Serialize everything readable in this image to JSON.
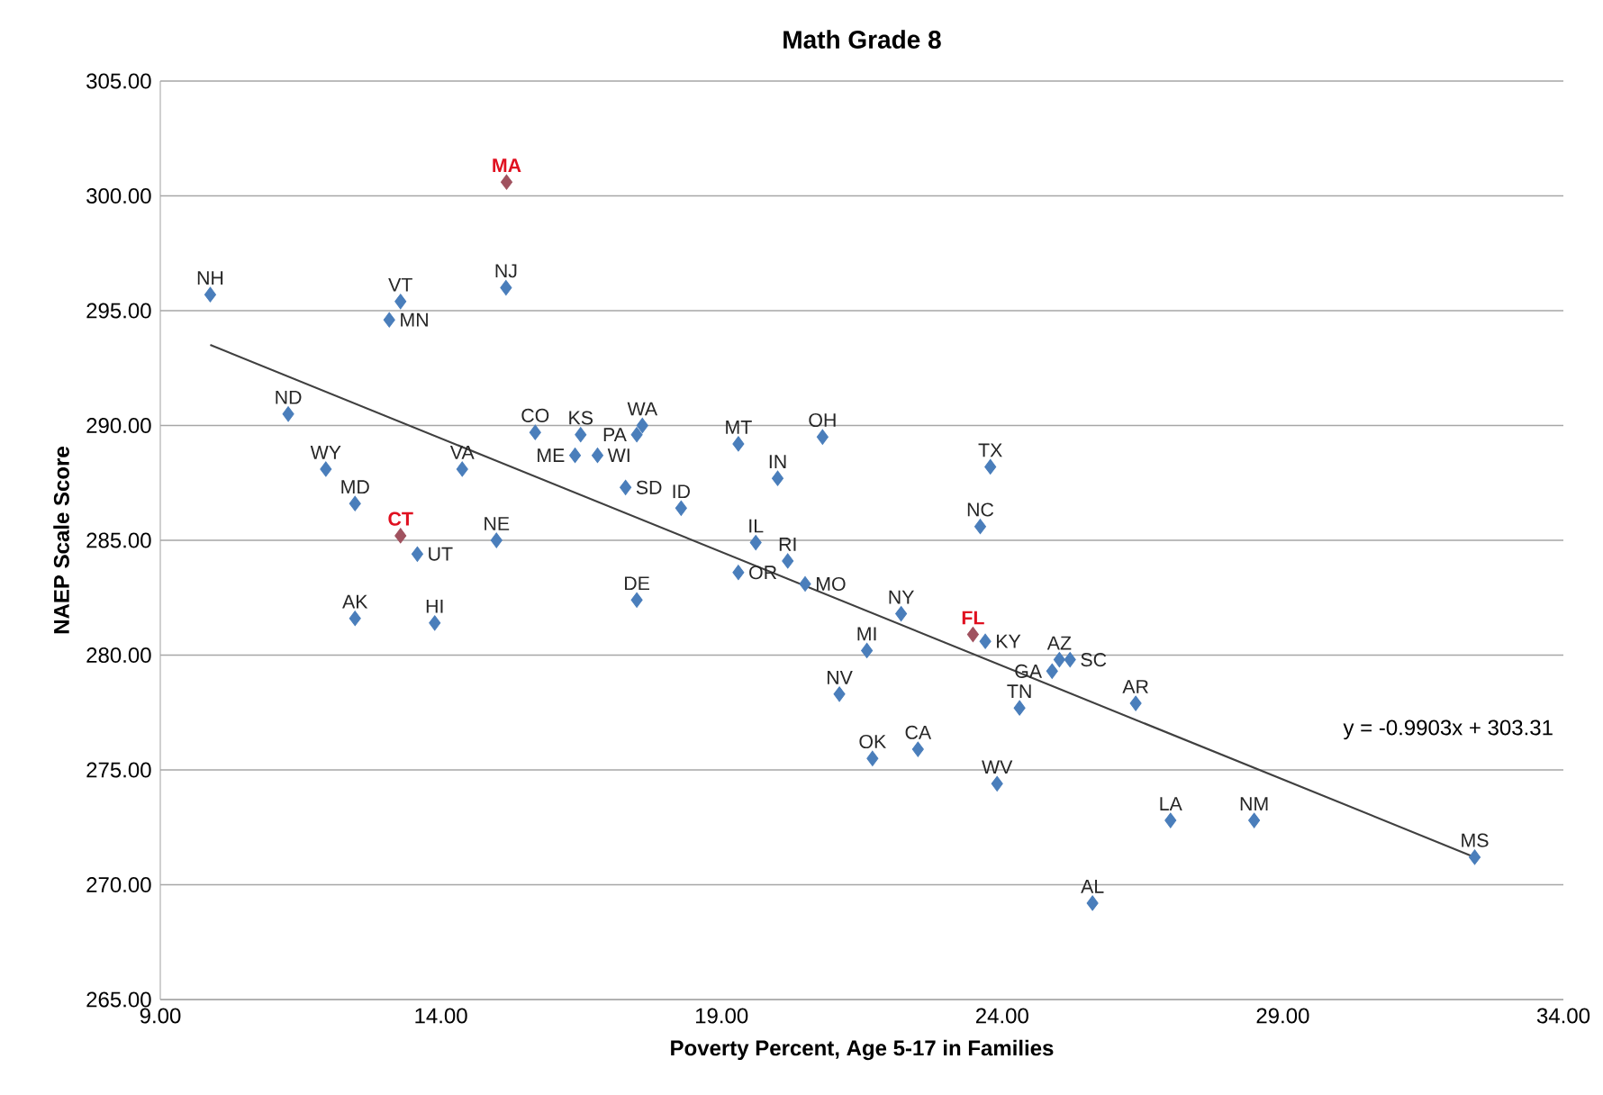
{
  "chart_data": {
    "type": "scatter",
    "title": "Math Grade 8",
    "xlabel": "Poverty Percent, Age 5-17 in Families",
    "ylabel": "NAEP Scale Score",
    "xlim": [
      9,
      34
    ],
    "ylim": [
      265,
      305
    ],
    "xticks": [
      {
        "value": 9,
        "label": "9.00"
      },
      {
        "value": 14,
        "label": "14.00"
      },
      {
        "value": 19,
        "label": "19.00"
      },
      {
        "value": 24,
        "label": "24.00"
      },
      {
        "value": 29,
        "label": "29.00"
      },
      {
        "value": 34,
        "label": "34.00"
      }
    ],
    "yticks": [
      {
        "value": 265,
        "label": "265.00"
      },
      {
        "value": 270,
        "label": "270.00"
      },
      {
        "value": 275,
        "label": "275.00"
      },
      {
        "value": 280,
        "label": "280.00"
      },
      {
        "value": 285,
        "label": "285.00"
      },
      {
        "value": 290,
        "label": "290.00"
      },
      {
        "value": 295,
        "label": "295.00"
      },
      {
        "value": 300,
        "label": "300.00"
      },
      {
        "value": 305,
        "label": "305.00"
      }
    ],
    "grid": "y",
    "marker": "diamond",
    "series": [
      {
        "color": "#4a7ebb",
        "x": [
          9.89,
          13.28,
          13.08,
          15.16,
          15.17,
          11.28,
          11.95,
          12.47,
          13.28,
          13.58,
          12.47,
          13.89,
          14.38,
          14.99,
          15.68,
          16.49,
          16.39,
          16.79,
          17.49,
          17.59,
          17.29,
          18.28,
          17.49,
          19.3,
          20.8,
          20.0,
          19.61,
          19.3,
          20.18,
          20.49,
          21.59,
          21.1,
          22.2,
          21.69,
          22.5,
          23.79,
          23.61,
          23.48,
          23.7,
          23.91,
          24.31,
          24.89,
          25.02,
          25.21,
          26.38,
          25.61,
          27.0,
          28.49,
          32.42
        ],
        "values": [
          295.7,
          295.4,
          294.6,
          296.0,
          300.6,
          290.5,
          288.1,
          286.6,
          285.2,
          284.4,
          281.6,
          281.4,
          288.1,
          285.0,
          289.7,
          289.6,
          288.7,
          288.7,
          289.6,
          290.0,
          287.3,
          286.4,
          282.4,
          289.2,
          289.5,
          287.7,
          284.9,
          283.6,
          284.1,
          283.1,
          280.2,
          278.3,
          281.8,
          275.5,
          275.9,
          288.2,
          285.6,
          280.9,
          280.6,
          274.4,
          277.7,
          279.3,
          279.8,
          279.8,
          277.9,
          269.2,
          272.8,
          272.8,
          271.2
        ],
        "colors": [
          "#4a7ebb",
          "#4a7ebb",
          "#4a7ebb",
          "#4a7ebb",
          "#a0525f",
          "#4a7ebb",
          "#4a7ebb",
          "#4a7ebb",
          "#a0525f",
          "#4a7ebb",
          "#4a7ebb",
          "#4a7ebb",
          "#4a7ebb",
          "#4a7ebb",
          "#4a7ebb",
          "#4a7ebb",
          "#4a7ebb",
          "#4a7ebb",
          "#4a7ebb",
          "#4a7ebb",
          "#4a7ebb",
          "#4a7ebb",
          "#4a7ebb",
          "#4a7ebb",
          "#4a7ebb",
          "#4a7ebb",
          "#4a7ebb",
          "#4a7ebb",
          "#4a7ebb",
          "#4a7ebb",
          "#4a7ebb",
          "#4a7ebb",
          "#4a7ebb",
          "#4a7ebb",
          "#4a7ebb",
          "#4a7ebb",
          "#4a7ebb",
          "#a0525f",
          "#4a7ebb",
          "#4a7ebb",
          "#4a7ebb",
          "#4a7ebb",
          "#4a7ebb",
          "#4a7ebb",
          "#4a7ebb",
          "#4a7ebb",
          "#4a7ebb",
          "#4a7ebb",
          "#4a7ebb"
        ]
      },
      {
        "type": "line",
        "color": "#404040",
        "x": [
          9.89,
          32.42
        ],
        "values": [
          293.51,
          271.2
        ],
        "marker": "none"
      }
    ],
    "annotations": [
      {
        "text": "NH",
        "x": 9.89,
        "y": 295.7
      },
      {
        "text": "VT",
        "x": 13.28,
        "y": 295.4
      },
      {
        "text": "MN",
        "x": 13.08,
        "y": 294.6
      },
      {
        "text": "NJ",
        "x": 15.16,
        "y": 296.0
      },
      {
        "text": "MA",
        "x": 15.17,
        "y": 300.6
      },
      {
        "text": "ND",
        "x": 11.28,
        "y": 290.5
      },
      {
        "text": "WY",
        "x": 11.95,
        "y": 288.1
      },
      {
        "text": "MD",
        "x": 12.47,
        "y": 286.6
      },
      {
        "text": "CT",
        "x": 13.28,
        "y": 285.2
      },
      {
        "text": "UT",
        "x": 13.58,
        "y": 284.4
      },
      {
        "text": "AK",
        "x": 12.47,
        "y": 281.6
      },
      {
        "text": "HI",
        "x": 13.89,
        "y": 281.4
      },
      {
        "text": "VA",
        "x": 14.38,
        "y": 288.1
      },
      {
        "text": "NE",
        "x": 14.99,
        "y": 285.0
      },
      {
        "text": "CO",
        "x": 15.68,
        "y": 289.7
      },
      {
        "text": "KS",
        "x": 16.49,
        "y": 289.6
      },
      {
        "text": "ME",
        "x": 16.39,
        "y": 288.7
      },
      {
        "text": "WI",
        "x": 16.79,
        "y": 288.7
      },
      {
        "text": "PA",
        "x": 17.49,
        "y": 289.6
      },
      {
        "text": "WA",
        "x": 17.59,
        "y": 290.0
      },
      {
        "text": "SD",
        "x": 17.29,
        "y": 287.3
      },
      {
        "text": "ID",
        "x": 18.28,
        "y": 286.4
      },
      {
        "text": "DE",
        "x": 17.49,
        "y": 282.4
      },
      {
        "text": "MT",
        "x": 19.3,
        "y": 289.2
      },
      {
        "text": "OH",
        "x": 20.8,
        "y": 289.5
      },
      {
        "text": "IN",
        "x": 20.0,
        "y": 287.7
      },
      {
        "text": "IL",
        "x": 19.61,
        "y": 284.9
      },
      {
        "text": "OR",
        "x": 19.3,
        "y": 283.6
      },
      {
        "text": "RI",
        "x": 20.18,
        "y": 284.1
      },
      {
        "text": "MO",
        "x": 20.49,
        "y": 283.1
      },
      {
        "text": "MI",
        "x": 21.59,
        "y": 280.2
      },
      {
        "text": "NV",
        "x": 21.1,
        "y": 278.3
      },
      {
        "text": "NY",
        "x": 22.2,
        "y": 281.8
      },
      {
        "text": "OK",
        "x": 21.69,
        "y": 275.5
      },
      {
        "text": "CA",
        "x": 22.5,
        "y": 275.9
      },
      {
        "text": "TX",
        "x": 23.79,
        "y": 288.2
      },
      {
        "text": "NC",
        "x": 23.61,
        "y": 285.6
      },
      {
        "text": "FL",
        "x": 23.48,
        "y": 280.9
      },
      {
        "text": "KY",
        "x": 23.7,
        "y": 280.6
      },
      {
        "text": "WV",
        "x": 23.91,
        "y": 274.4
      },
      {
        "text": "TN",
        "x": 24.31,
        "y": 277.7
      },
      {
        "text": "GA",
        "x": 24.89,
        "y": 279.3
      },
      {
        "text": "AZ",
        "x": 25.02,
        "y": 279.8
      },
      {
        "text": "SC",
        "x": 25.21,
        "y": 279.8
      },
      {
        "text": "AR",
        "x": 26.38,
        "y": 277.9
      },
      {
        "text": "AL",
        "x": 25.61,
        "y": 269.2
      },
      {
        "text": "LA",
        "x": 27.0,
        "y": 272.8
      },
      {
        "text": "NM",
        "x": 28.49,
        "y": 272.8
      },
      {
        "text": "MS",
        "x": 32.42,
        "y": 271.2
      },
      "y = -0.9903x + 303.31"
    ]
  }
}
